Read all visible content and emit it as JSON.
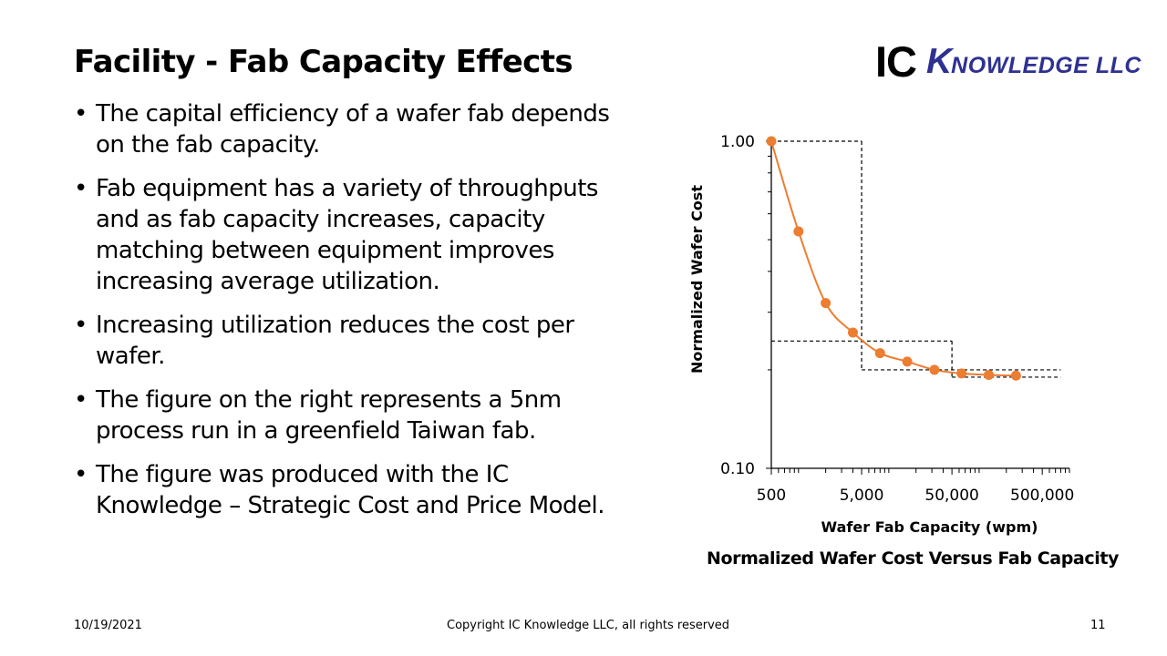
{
  "slide": {
    "title": "Facility - Fab Capacity Effects",
    "bullets": [
      "The capital efficiency of a wafer fab depends on the fab capacity.",
      "Fab equipment has a variety of throughputs and as fab capacity increases, capacity matching between equipment improves increasing average utilization.",
      "Increasing utilization reduces the cost per wafer.",
      "The figure on the right represents a 5nm process run in a greenfield Taiwan fab.",
      "The figure was produced with the IC Knowledge – Strategic Cost and Price Model."
    ],
    "bullet_char": "•"
  },
  "logo": {
    "part1": "IC",
    "part2_cap": "K",
    "part2_rest": "NOWLEDGE LLC",
    "color": "#2e3192"
  },
  "caption": "Normalized Wafer Cost Versus Fab Capacity",
  "footer": {
    "date": "10/19/2021",
    "copyright": "Copyright IC Knowledge LLC, all rights reserved",
    "page": "11"
  },
  "chart_data": {
    "type": "scatter",
    "xlabel": "Wafer Fab Capacity (wpm)",
    "ylabel": "Normalized Wafer Cost",
    "x_scale": "log",
    "y_scale": "log",
    "xlim": [
      500,
      1000000
    ],
    "ylim": [
      0.1,
      1.0
    ],
    "x_ticks": [
      500,
      5000,
      50000,
      500000
    ],
    "x_tick_labels": [
      "500",
      "5,000",
      "50,000",
      "500,000"
    ],
    "y_ticks": [
      0.1,
      1.0
    ],
    "y_tick_labels": [
      "0.10",
      "1.00"
    ],
    "series": [
      {
        "color": "#ed7d31",
        "x": [
          500,
          1000,
          2000,
          4000,
          8000,
          16000,
          32000,
          64000,
          128000,
          256000
        ],
        "y": [
          1.0,
          0.53,
          0.32,
          0.26,
          0.225,
          0.212,
          0.2,
          0.195,
          0.193,
          0.192
        ]
      }
    ],
    "reference_lines": {
      "color": "#000000",
      "style": "dashed",
      "segments": [
        {
          "x": [
            500,
            5000
          ],
          "y": [
            1.0,
            1.0
          ]
        },
        {
          "x": [
            5000,
            5000
          ],
          "y": [
            1.0,
            0.2
          ]
        },
        {
          "x": [
            500,
            50000
          ],
          "y": [
            0.245,
            0.245
          ]
        },
        {
          "x": [
            5000,
            800000
          ],
          "y": [
            0.2,
            0.2
          ]
        },
        {
          "x": [
            50000,
            50000
          ],
          "y": [
            0.245,
            0.19
          ]
        },
        {
          "x": [
            50000,
            800000
          ],
          "y": [
            0.19,
            0.19
          ]
        }
      ]
    },
    "grid": false,
    "legend": "none"
  }
}
